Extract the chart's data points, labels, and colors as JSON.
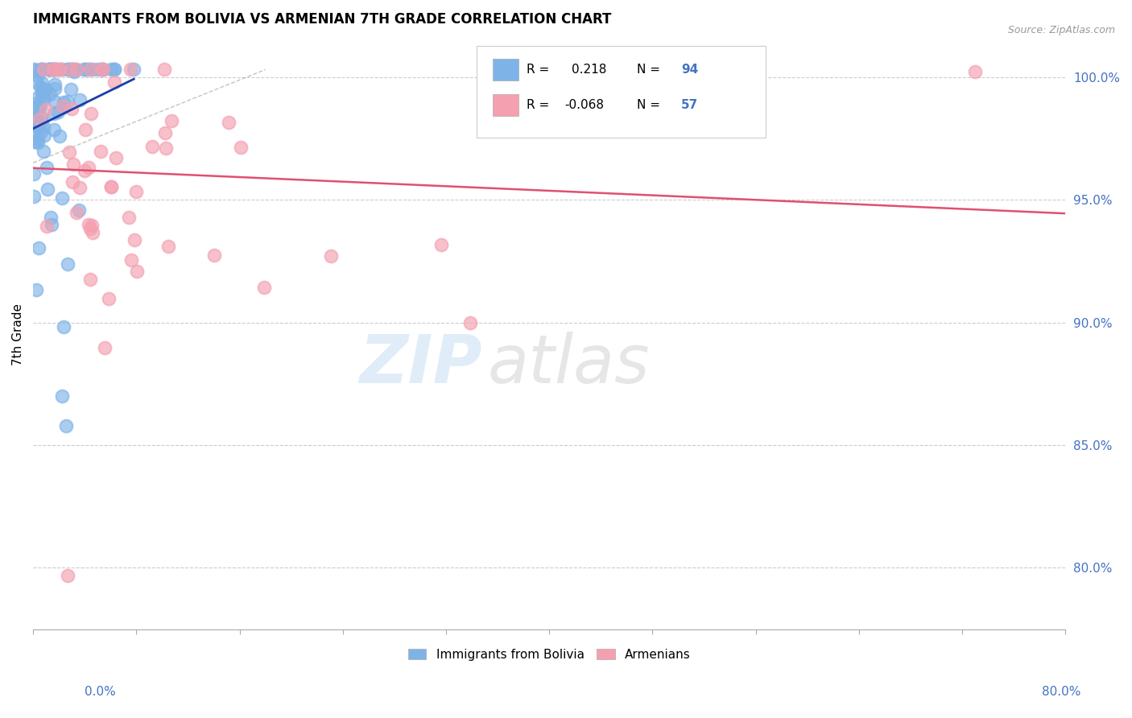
{
  "title": "IMMIGRANTS FROM BOLIVIA VS ARMENIAN 7TH GRADE CORRELATION CHART",
  "source": "Source: ZipAtlas.com",
  "ylabel": "7th Grade",
  "right_ytick_labels": [
    "100.0%",
    "95.0%",
    "90.0%",
    "85.0%",
    "80.0%"
  ],
  "right_ytick_values": [
    1.0,
    0.95,
    0.9,
    0.85,
    0.8
  ],
  "xmin": 0.0,
  "xmax": 0.8,
  "ymin": 0.775,
  "ymax": 1.015,
  "bolivia_R": 0.218,
  "bolivia_N": 94,
  "armenian_R": -0.068,
  "armenian_N": 57,
  "bolivia_color": "#7EB3E8",
  "armenian_color": "#F4A0B0",
  "bolivia_trend_color": "#1a3fa8",
  "armenian_trend_color": "#e05070",
  "bolivia_seed": 42,
  "armenian_seed": 123
}
